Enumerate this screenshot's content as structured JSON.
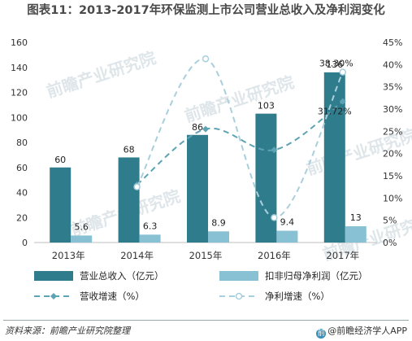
{
  "title": "图表11：2013-2017年环保监测上市公司营业总收入及净利润变化",
  "source": "资料来源：前瞻产业研究院整理",
  "brand": "@前瞻经济学人APP",
  "watermark": "前瞻产业研究院",
  "colors": {
    "revenue": "#2f7d8c",
    "profit": "#87c1d3",
    "revenue_growth": "#5da3b3",
    "profit_growth": "#a9cfdc",
    "axis_text": "#333333"
  },
  "chart_data": {
    "type": "bar",
    "categories": [
      "2013年",
      "2014年",
      "2015年",
      "2016年",
      "2017年"
    ],
    "y_left": {
      "min": 0,
      "max": 160,
      "ticks": [
        0,
        20,
        40,
        60,
        80,
        100,
        120,
        140,
        160
      ]
    },
    "y_right": {
      "min": 0,
      "max": 45,
      "ticks": [
        "0%",
        "5%",
        "10%",
        "15%",
        "20%",
        "25%",
        "30%",
        "35%",
        "40%",
        "45%"
      ]
    },
    "series": [
      {
        "name": "营业总收入（亿元）",
        "kind": "bar",
        "axis": "left",
        "values": [
          60,
          68,
          86,
          103,
          136
        ],
        "labels": [
          "60",
          "68",
          "86",
          "103",
          "136"
        ]
      },
      {
        "name": "扣非归母净利润（亿元）",
        "kind": "bar",
        "axis": "left",
        "values": [
          5.6,
          6.3,
          8.9,
          9.4,
          13
        ],
        "labels": [
          "5.6",
          "6.3",
          "8.9",
          "9.4",
          "13"
        ]
      },
      {
        "name": "营收增速（%）",
        "kind": "line",
        "axis": "right",
        "values": [
          null,
          13,
          25.5,
          20.8,
          31.72
        ],
        "labels": [
          "",
          "",
          "",
          "",
          "31.72%"
        ]
      },
      {
        "name": "净利增速（%）",
        "kind": "line",
        "axis": "right",
        "values": [
          null,
          12.5,
          41.3,
          5.6,
          38.3
        ],
        "labels": [
          "",
          "",
          "",
          "",
          "38.30%"
        ]
      }
    ],
    "legend": "bottom",
    "grid": false
  }
}
